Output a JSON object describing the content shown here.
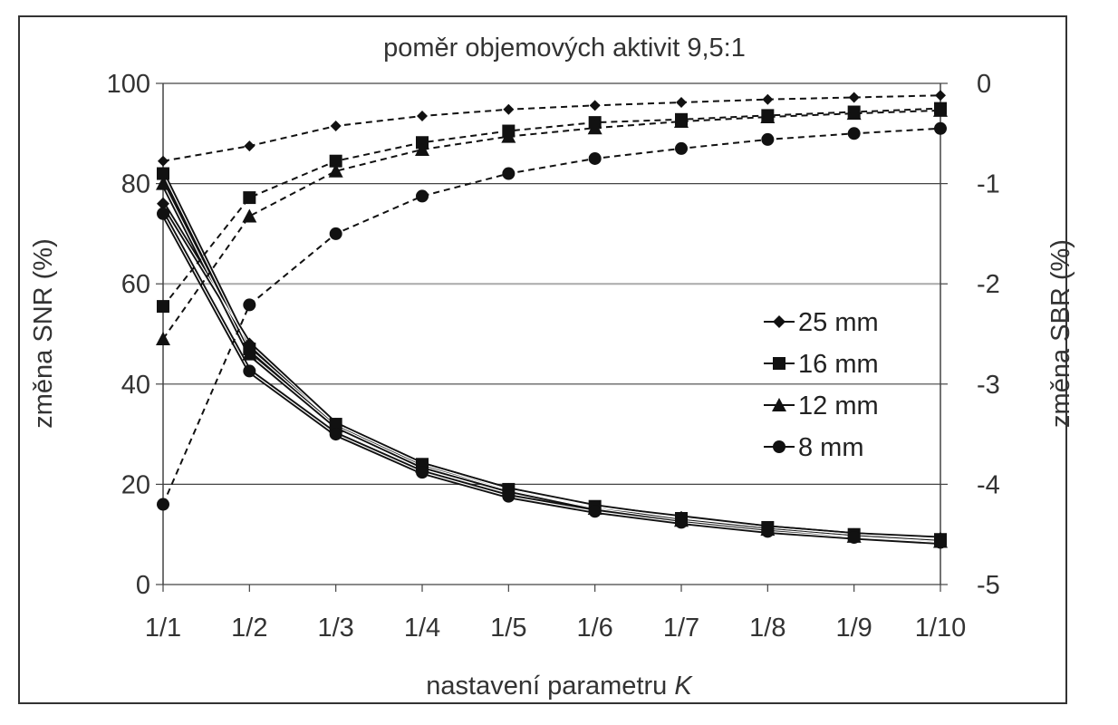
{
  "chart_data": {
    "type": "line",
    "title": "poměr objemových aktivit 9,5:1",
    "xlabel_main": "nastavení parametru ",
    "xlabel_italic": "K",
    "ylabel": "změna SNR (%)",
    "y2label": "změna SBR (%)",
    "categories": [
      "1/1",
      "1/2",
      "1/3",
      "1/4",
      "1/5",
      "1/6",
      "1/7",
      "1/8",
      "1/9",
      "1/10"
    ],
    "ylim": [
      0,
      100
    ],
    "y_ticks": [
      "0",
      "20",
      "40",
      "60",
      "80",
      "100"
    ],
    "y2lim": [
      -5,
      0
    ],
    "y2_ticks": [
      "-5",
      "-4",
      "-3",
      "-2",
      "-1",
      "0"
    ],
    "grid": true,
    "legend_position": "center-right",
    "series": [
      {
        "name": "25 mm",
        "marker": "diamond",
        "snr_dashed": [
          84.5,
          87.5,
          91.5,
          93.5,
          94.8,
          95.6,
          96.2,
          96.8,
          97.2,
          97.6
        ],
        "sbr_solid": [
          -1.2,
          -2.6,
          -3.4,
          -3.8,
          -4.05,
          -4.23,
          -4.33,
          -4.43,
          -4.5,
          -4.54
        ]
      },
      {
        "name": "16 mm",
        "marker": "square",
        "snr_dashed": [
          55.5,
          77.2,
          84.5,
          88.2,
          90.5,
          92.2,
          92.8,
          93.6,
          94.3,
          95.0
        ],
        "sbr_solid": [
          -0.9,
          -2.65,
          -3.4,
          -3.8,
          -4.05,
          -4.22,
          -4.34,
          -4.43,
          -4.5,
          -4.55
        ]
      },
      {
        "name": "12 mm",
        "marker": "triangle",
        "snr_dashed": [
          49.0,
          73.5,
          82.5,
          86.8,
          89.4,
          91.1,
          92.4,
          93.3,
          94.0,
          94.6
        ],
        "sbr_solid": [
          -1.0,
          -2.7,
          -3.42,
          -3.82,
          -4.06,
          -4.24,
          -4.36,
          -4.45,
          -4.52,
          -4.57
        ]
      },
      {
        "name": "8 mm",
        "marker": "circle",
        "snr_dashed": [
          16.0,
          55.8,
          70.0,
          77.5,
          82.0,
          85.0,
          87.0,
          88.8,
          90.0,
          91.0
        ],
        "sbr_solid": [
          -1.3,
          -2.87,
          -3.5,
          -3.88,
          -4.12,
          -4.27,
          -4.38,
          -4.47,
          -4.53,
          -4.58
        ]
      }
    ]
  }
}
